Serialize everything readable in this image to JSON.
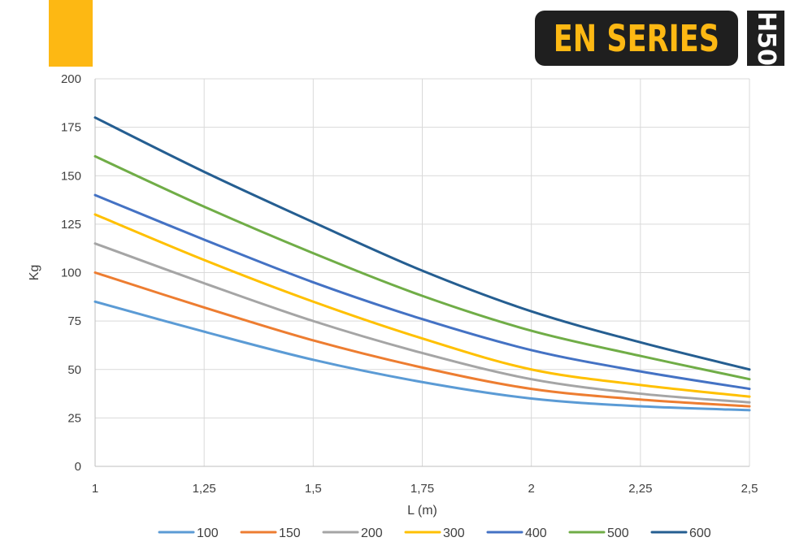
{
  "header": {
    "brand_text": "EN SERIES",
    "model_text": "H50",
    "accent_color": "#FDB813",
    "badge_color": "#1F1F1F"
  },
  "chart_data": {
    "type": "line",
    "title": "",
    "xlabel": "L (m)",
    "ylabel": "Kg",
    "xlim": [
      1,
      2.5
    ],
    "ylim": [
      0,
      200
    ],
    "x_ticks": [
      "1",
      "1,25",
      "1,5",
      "1,75",
      "2",
      "2,25",
      "2,5"
    ],
    "y_ticks": [
      "0",
      "25",
      "50",
      "75",
      "100",
      "125",
      "150",
      "175",
      "200"
    ],
    "grid": true,
    "legend_position": "bottom",
    "x": [
      1,
      1.25,
      1.5,
      1.75,
      2,
      2.25,
      2.5
    ],
    "series": [
      {
        "name": "100",
        "color": "#5B9BD5",
        "values": [
          85,
          69.5,
          55,
          43.5,
          35,
          31,
          29
        ]
      },
      {
        "name": "150",
        "color": "#ED7D31",
        "values": [
          100,
          82,
          65,
          51,
          40,
          34.5,
          31
        ]
      },
      {
        "name": "200",
        "color": "#A5A5A5",
        "values": [
          115,
          94.5,
          75,
          58.5,
          45,
          37.5,
          33
        ]
      },
      {
        "name": "300",
        "color": "#FFC000",
        "values": [
          130,
          106.5,
          85,
          66,
          50,
          42,
          36
        ]
      },
      {
        "name": "400",
        "color": "#4472C4",
        "values": [
          140,
          117,
          95,
          76,
          60,
          49,
          40
        ]
      },
      {
        "name": "500",
        "color": "#70AD47",
        "values": [
          160,
          134,
          110,
          88,
          70,
          57,
          45
        ]
      },
      {
        "name": "600",
        "color": "#255E91",
        "values": [
          180,
          152,
          126,
          101,
          80,
          64,
          50
        ]
      }
    ]
  }
}
